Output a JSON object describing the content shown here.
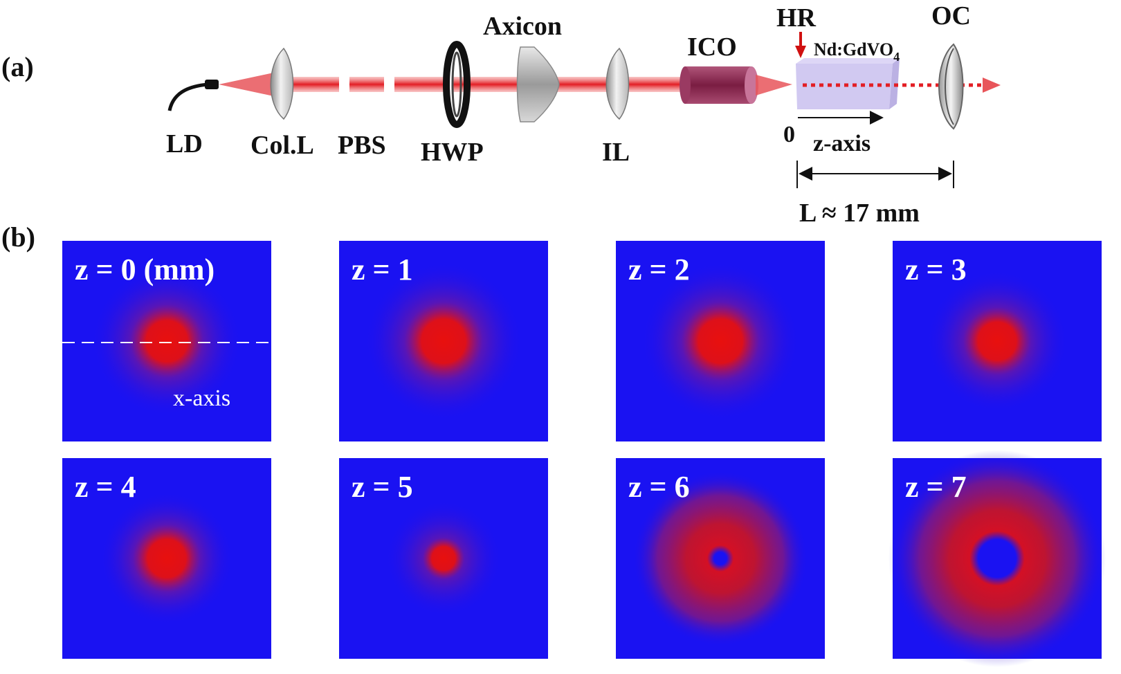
{
  "panel_a": {
    "label": "(a)",
    "components": {
      "ld": "LD",
      "col_l": "Col.L",
      "pbs": "PBS",
      "hwp": "HWP",
      "axicon": "Axicon",
      "il": "IL",
      "ico": "ICO",
      "hr": "HR",
      "crystal": "Nd:GdVO",
      "crystal_sub": "4",
      "oc": "OC"
    },
    "z_axis": {
      "origin": "0",
      "label": "z-axis"
    },
    "cavity_length": "L ≈ 17 mm"
  },
  "panel_b": {
    "label": "(b)",
    "x_axis_label": "x-axis",
    "tiles": [
      {
        "label": "z = 0 (mm)",
        "shape": "spot",
        "spot_radius": 0.14,
        "glow_radius": 0.36
      },
      {
        "label": "z = 1",
        "shape": "spot",
        "spot_radius": 0.15,
        "glow_radius": 0.38
      },
      {
        "label": "z = 2",
        "shape": "spot",
        "spot_radius": 0.15,
        "glow_radius": 0.38
      },
      {
        "label": "z = 3",
        "shape": "spot",
        "spot_radius": 0.13,
        "glow_radius": 0.34
      },
      {
        "label": "z = 4",
        "shape": "spot",
        "spot_radius": 0.13,
        "glow_radius": 0.32
      },
      {
        "label": "z = 5",
        "shape": "spot",
        "spot_radius": 0.08,
        "glow_radius": 0.28
      },
      {
        "label": "z = 6",
        "shape": "ring",
        "ring_inner": 0.03,
        "ring_outer": 0.3,
        "glow_radius": 0.42
      },
      {
        "label": "z = 7",
        "shape": "ring",
        "ring_inner": 0.09,
        "ring_outer": 0.37,
        "glow_radius": 0.52
      }
    ]
  },
  "colors": {
    "background": "#1a12f2",
    "beam": "#e8100e",
    "laser": "#e31e24",
    "crystal": "#c9c0ee",
    "ico": "#8c2a50",
    "arrow": "#d01010"
  }
}
